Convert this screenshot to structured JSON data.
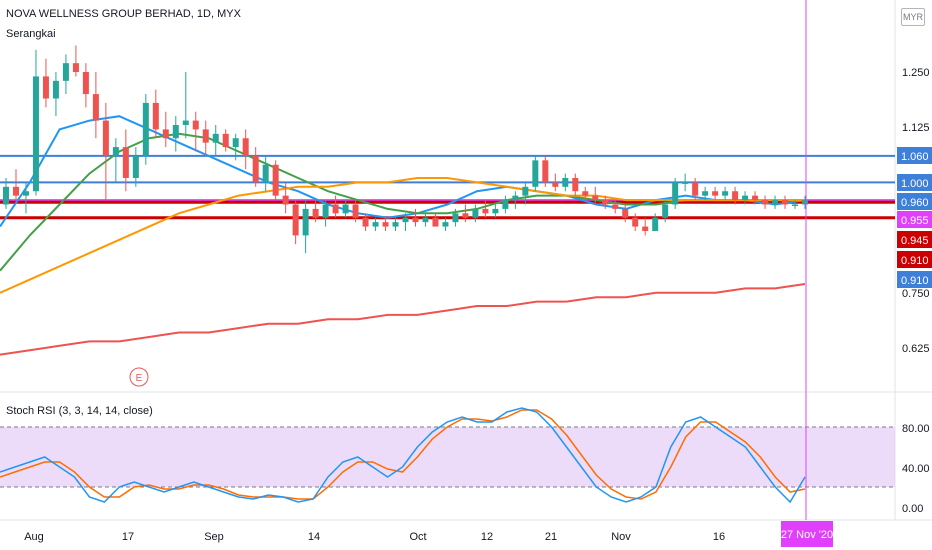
{
  "header": {
    "title": "NOVA WELLNESS GROUP BERHAD, 1D, MYX",
    "subtitle": "Serangkai",
    "currency": "MYR"
  },
  "rsi": {
    "title": "Stoch RSI (3, 3, 14, 14, close)"
  },
  "colors": {
    "up": "#26a69a",
    "down": "#ef5350",
    "ma_fast": "#2196f3",
    "ma_mid": "#43a047",
    "ma_slow": "#ff9800",
    "ma_long": "#ef5350",
    "hline_blue": "#3d7fd9",
    "hline_magenta": "#e040fb",
    "hline_red": "#cc0000",
    "cursor": "#e040fb",
    "rsi_band": "#e1c4f5"
  },
  "chart_data": {
    "type": "candlestick",
    "title": "NOVA WELLNESS GROUP BERHAD, 1D, MYX",
    "x_ticks": [
      "Aug",
      "17",
      "Sep",
      "14",
      "Oct",
      "12",
      "21",
      "Nov",
      "16"
    ],
    "price_axis_ticks": [
      1.25,
      1.125,
      0.75,
      0.625
    ],
    "price_tick_labels": [
      "1.250",
      "1.125",
      "0.750",
      "0.625"
    ],
    "price_labels": [
      {
        "text": "1.060",
        "value": 1.06,
        "color": "#3d7fd9"
      },
      {
        "text": "1.000",
        "value": 1.0,
        "color": "#3d7fd9"
      },
      {
        "text": "0.960",
        "value": 0.96,
        "color": "#3d7fd9"
      },
      {
        "text": "0.955",
        "value": 0.955,
        "color": "#e040fb"
      },
      {
        "text": "0.945",
        "value": 0.945,
        "color": "#cc0000"
      },
      {
        "text": "0.910",
        "value": 0.91,
        "color": "#cc0000"
      },
      {
        "text": "0.910",
        "value": 0.91,
        "color": "#3d7fd9"
      }
    ],
    "horizontal_lines": [
      {
        "value": 1.06,
        "color": "#3d7fd9"
      },
      {
        "value": 1.0,
        "color": "#3d7fd9"
      },
      {
        "value": 0.96,
        "color": "#e040fb"
      },
      {
        "value": 0.955,
        "color": "#cc0000"
      },
      {
        "value": 0.92,
        "color": "#cc0000"
      }
    ],
    "candles": [
      [
        0.95,
        1.01,
        0.94,
        0.99
      ],
      [
        0.99,
        1.03,
        0.96,
        0.97
      ],
      [
        0.97,
        1.0,
        0.93,
        0.98
      ],
      [
        0.98,
        1.3,
        0.97,
        1.24
      ],
      [
        1.24,
        1.28,
        1.17,
        1.19
      ],
      [
        1.19,
        1.25,
        1.15,
        1.23
      ],
      [
        1.23,
        1.29,
        1.2,
        1.27
      ],
      [
        1.27,
        1.31,
        1.24,
        1.25
      ],
      [
        1.25,
        1.27,
        1.17,
        1.2
      ],
      [
        1.2,
        1.25,
        1.1,
        1.14
      ],
      [
        1.14,
        1.18,
        0.96,
        1.06
      ],
      [
        1.06,
        1.1,
        1.0,
        1.08
      ],
      [
        1.08,
        1.12,
        0.98,
        1.01
      ],
      [
        1.01,
        1.08,
        0.99,
        1.06
      ],
      [
        1.06,
        1.2,
        1.04,
        1.18
      ],
      [
        1.18,
        1.21,
        1.1,
        1.12
      ],
      [
        1.12,
        1.16,
        1.08,
        1.1
      ],
      [
        1.1,
        1.15,
        1.07,
        1.13
      ],
      [
        1.13,
        1.25,
        1.1,
        1.14
      ],
      [
        1.14,
        1.16,
        1.07,
        1.12
      ],
      [
        1.12,
        1.14,
        1.06,
        1.09
      ],
      [
        1.09,
        1.13,
        1.06,
        1.11
      ],
      [
        1.11,
        1.12,
        1.07,
        1.08
      ],
      [
        1.08,
        1.11,
        1.05,
        1.1
      ],
      [
        1.1,
        1.12,
        1.03,
        1.06
      ],
      [
        1.06,
        1.08,
        0.99,
        1.0
      ],
      [
        1.0,
        1.06,
        0.98,
        1.04
      ],
      [
        1.04,
        1.05,
        0.96,
        0.97
      ],
      [
        0.97,
        1.0,
        0.93,
        0.95
      ],
      [
        0.95,
        0.96,
        0.86,
        0.88
      ],
      [
        0.88,
        0.96,
        0.84,
        0.94
      ],
      [
        0.94,
        0.96,
        0.91,
        0.92
      ],
      [
        0.92,
        0.96,
        0.9,
        0.95
      ],
      [
        0.95,
        0.97,
        0.92,
        0.93
      ],
      [
        0.93,
        0.96,
        0.92,
        0.95
      ],
      [
        0.95,
        0.96,
        0.91,
        0.92
      ],
      [
        0.92,
        0.93,
        0.89,
        0.9
      ],
      [
        0.9,
        0.92,
        0.89,
        0.91
      ],
      [
        0.91,
        0.92,
        0.89,
        0.9
      ],
      [
        0.9,
        0.92,
        0.89,
        0.91
      ],
      [
        0.91,
        0.93,
        0.89,
        0.92
      ],
      [
        0.92,
        0.94,
        0.9,
        0.91
      ],
      [
        0.91,
        0.93,
        0.9,
        0.92
      ],
      [
        0.92,
        0.93,
        0.9,
        0.9
      ],
      [
        0.9,
        0.92,
        0.89,
        0.91
      ],
      [
        0.91,
        0.94,
        0.9,
        0.93
      ],
      [
        0.93,
        0.95,
        0.91,
        0.92
      ],
      [
        0.92,
        0.95,
        0.91,
        0.94
      ],
      [
        0.94,
        0.96,
        0.92,
        0.93
      ],
      [
        0.93,
        0.95,
        0.92,
        0.94
      ],
      [
        0.94,
        0.97,
        0.93,
        0.96
      ],
      [
        0.96,
        0.98,
        0.94,
        0.97
      ],
      [
        0.97,
        1.0,
        0.95,
        0.99
      ],
      [
        0.99,
        1.06,
        0.98,
        1.05
      ],
      [
        1.05,
        1.06,
        0.99,
        1.0
      ],
      [
        1.0,
        1.02,
        0.98,
        0.99
      ],
      [
        0.99,
        1.02,
        0.98,
        1.01
      ],
      [
        1.01,
        1.02,
        0.97,
        0.98
      ],
      [
        0.98,
        0.99,
        0.96,
        0.97
      ],
      [
        0.97,
        0.99,
        0.95,
        0.96
      ],
      [
        0.96,
        0.97,
        0.94,
        0.95
      ],
      [
        0.95,
        0.96,
        0.93,
        0.94
      ],
      [
        0.94,
        0.95,
        0.91,
        0.92
      ],
      [
        0.92,
        0.93,
        0.89,
        0.9
      ],
      [
        0.9,
        0.92,
        0.88,
        0.89
      ],
      [
        0.89,
        0.93,
        0.89,
        0.92
      ],
      [
        0.92,
        0.96,
        0.91,
        0.95
      ],
      [
        0.95,
        1.01,
        0.94,
        1.0
      ],
      [
        1.0,
        1.02,
        0.98,
        1.0
      ],
      [
        1.0,
        1.01,
        0.96,
        0.97
      ],
      [
        0.97,
        0.99,
        0.96,
        0.98
      ],
      [
        0.98,
        0.99,
        0.96,
        0.97
      ],
      [
        0.97,
        0.99,
        0.96,
        0.98
      ],
      [
        0.98,
        0.99,
        0.95,
        0.96
      ],
      [
        0.96,
        0.98,
        0.95,
        0.97
      ],
      [
        0.97,
        0.98,
        0.95,
        0.96
      ],
      [
        0.96,
        0.97,
        0.94,
        0.95
      ],
      [
        0.95,
        0.97,
        0.94,
        0.96
      ],
      [
        0.96,
        0.97,
        0.94,
        0.95
      ],
      [
        0.95,
        0.96,
        0.94,
        0.95
      ],
      [
        0.95,
        0.97,
        0.94,
        0.96
      ]
    ],
    "ma_series": [
      {
        "color": "#2196f3",
        "values": [
          0.9,
          1.0,
          1.12,
          1.14,
          1.15,
          1.12,
          1.09,
          1.06,
          1.03,
          1.0,
          0.98,
          0.95,
          0.93,
          0.92,
          0.93,
          0.95,
          0.98,
          0.99,
          0.98,
          0.97,
          0.95,
          0.94,
          0.96,
          0.97,
          0.96,
          0.96,
          0.95,
          0.96
        ]
      },
      {
        "color": "#43a047",
        "values": [
          0.8,
          0.88,
          0.95,
          1.02,
          1.07,
          1.1,
          1.11,
          1.1,
          1.07,
          1.04,
          1.01,
          0.98,
          0.96,
          0.94,
          0.93,
          0.93,
          0.94,
          0.96,
          0.97,
          0.97,
          0.96,
          0.95,
          0.95,
          0.96,
          0.96,
          0.96,
          0.96,
          0.96
        ]
      },
      {
        "color": "#ff9800",
        "values": [
          0.75,
          0.78,
          0.81,
          0.84,
          0.87,
          0.9,
          0.93,
          0.95,
          0.97,
          0.98,
          0.99,
          0.99,
          1.0,
          1.0,
          1.01,
          1.01,
          1.0,
          0.99,
          0.98,
          0.97,
          0.97,
          0.96,
          0.96,
          0.96,
          0.96,
          0.96,
          0.96,
          0.96
        ]
      },
      {
        "color": "#ef5350",
        "values": [
          0.61,
          0.62,
          0.63,
          0.64,
          0.64,
          0.65,
          0.66,
          0.66,
          0.67,
          0.68,
          0.68,
          0.69,
          0.69,
          0.7,
          0.7,
          0.71,
          0.72,
          0.72,
          0.73,
          0.73,
          0.74,
          0.74,
          0.75,
          0.75,
          0.75,
          0.76,
          0.76,
          0.77
        ]
      }
    ],
    "earnings_marker": "E",
    "stoch_rsi": {
      "levels": [
        80,
        40,
        20
      ],
      "tick_labels": [
        "80.00",
        "40.00",
        "0.00"
      ],
      "k": [
        35,
        40,
        45,
        50,
        40,
        30,
        10,
        5,
        20,
        25,
        20,
        15,
        20,
        25,
        20,
        15,
        10,
        8,
        12,
        10,
        5,
        8,
        30,
        45,
        50,
        40,
        30,
        40,
        60,
        75,
        85,
        90,
        85,
        85,
        95,
        99,
        95,
        80,
        60,
        40,
        20,
        10,
        5,
        10,
        20,
        60,
        85,
        90,
        80,
        70,
        60,
        40,
        20,
        5,
        30
      ],
      "d": [
        30,
        35,
        40,
        45,
        45,
        35,
        20,
        10,
        10,
        20,
        22,
        18,
        18,
        22,
        22,
        18,
        12,
        10,
        10,
        10,
        8,
        8,
        20,
        35,
        45,
        45,
        38,
        35,
        50,
        68,
        80,
        88,
        88,
        86,
        90,
        97,
        97,
        88,
        72,
        52,
        32,
        18,
        10,
        8,
        15,
        40,
        70,
        85,
        85,
        75,
        65,
        50,
        30,
        15,
        18
      ]
    },
    "cursor_label": "27 Nov '20"
  }
}
